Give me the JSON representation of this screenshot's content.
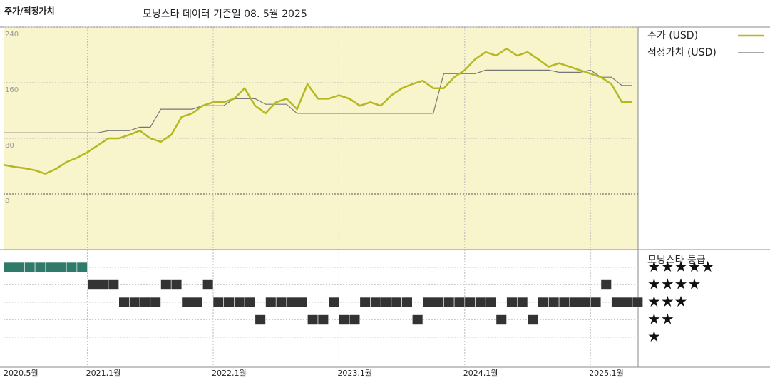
{
  "chart_data": {
    "type": "line",
    "title": "주가/적정가치",
    "subtitle": "모닝스타 데이터 기준일 08. 5월 2025",
    "x": [
      "2020-05",
      "2020-06",
      "2020-07",
      "2020-08",
      "2020-09",
      "2020-10",
      "2020-11",
      "2020-12",
      "2021-01",
      "2021-02",
      "2021-03",
      "2021-04",
      "2021-05",
      "2021-06",
      "2021-07",
      "2021-08",
      "2021-09",
      "2021-10",
      "2021-11",
      "2021-12",
      "2022-01",
      "2022-02",
      "2022-03",
      "2022-04",
      "2022-05",
      "2022-06",
      "2022-07",
      "2022-08",
      "2022-09",
      "2022-10",
      "2022-11",
      "2022-12",
      "2023-01",
      "2023-02",
      "2023-03",
      "2023-04",
      "2023-05",
      "2023-06",
      "2023-07",
      "2023-08",
      "2023-09",
      "2023-10",
      "2023-11",
      "2023-12",
      "2024-01",
      "2024-02",
      "2024-03",
      "2024-04",
      "2024-05",
      "2024-06",
      "2024-07",
      "2024-08",
      "2024-09",
      "2024-10",
      "2024-11",
      "2024-12",
      "2025-01",
      "2025-02",
      "2025-03",
      "2025-04",
      "2025-05"
    ],
    "series": [
      {
        "name": "주가 (USD)",
        "color": "#b5b820",
        "width": 2.5,
        "values": [
          42,
          39,
          37,
          34,
          29,
          36,
          46,
          52,
          60,
          70,
          80,
          80,
          85,
          91,
          80,
          75,
          85,
          111,
          116,
          127,
          132,
          132,
          137,
          152,
          127,
          116,
          132,
          137,
          122,
          158,
          137,
          137,
          142,
          137,
          127,
          132,
          127,
          142,
          152,
          158,
          163,
          152,
          152,
          168,
          178,
          194,
          204,
          199,
          209,
          199,
          204,
          194,
          183,
          188,
          183,
          178,
          173,
          168,
          158,
          132,
          132
        ]
      },
      {
        "name": "적정가치 (USD)",
        "color": "#777777",
        "width": 1.2,
        "values": [
          88,
          88,
          88,
          88,
          88,
          88,
          88,
          88,
          88,
          88,
          91,
          91,
          91,
          96,
          96,
          122,
          122,
          122,
          122,
          127,
          127,
          127,
          137,
          137,
          137,
          129,
          129,
          129,
          116,
          116,
          116,
          116,
          116,
          116,
          116,
          116,
          116,
          116,
          116,
          116,
          116,
          116,
          173,
          173,
          173,
          173,
          178,
          178,
          178,
          178,
          178,
          178,
          178,
          175,
          175,
          175,
          178,
          168,
          168,
          156,
          156
        ]
      }
    ],
    "ylim": [
      -80,
      240
    ],
    "yticks": [
      0,
      80,
      160,
      240
    ],
    "xticks": [
      {
        "value": "2020-05",
        "label": "2020,5월"
      },
      {
        "value": "2021-01",
        "label": "2021,1월"
      },
      {
        "value": "2022-01",
        "label": "2022,1월"
      },
      {
        "value": "2023-01",
        "label": "2023,1월"
      },
      {
        "value": "2024-01",
        "label": "2024,1월"
      },
      {
        "value": "2025-01",
        "label": "2025,1월"
      }
    ],
    "background": "#f8f4cc",
    "rating": {
      "title": "모닝스타 등급",
      "values": [
        5,
        5,
        5,
        5,
        5,
        5,
        5,
        5,
        4,
        4,
        4,
        3,
        3,
        3,
        3,
        4,
        4,
        3,
        3,
        4,
        3,
        3,
        3,
        3,
        2,
        3,
        3,
        3,
        3,
        2,
        2,
        3,
        2,
        2,
        3,
        3,
        3,
        3,
        3,
        2,
        3,
        3,
        3,
        3,
        3,
        3,
        3,
        2,
        3,
        3,
        2,
        3,
        3,
        3,
        3,
        3,
        3,
        4,
        3,
        3,
        3
      ],
      "ylim": [
        0.5,
        5.5
      ],
      "yticks": [
        {
          "value": 5,
          "label": "★★★★★"
        },
        {
          "value": 4,
          "label": "★★★★"
        },
        {
          "value": 3,
          "label": "★★★"
        },
        {
          "value": 2,
          "label": "★★"
        },
        {
          "value": 1,
          "label": "★"
        }
      ],
      "top_color": "#2f7a68",
      "color": "#333333"
    }
  }
}
